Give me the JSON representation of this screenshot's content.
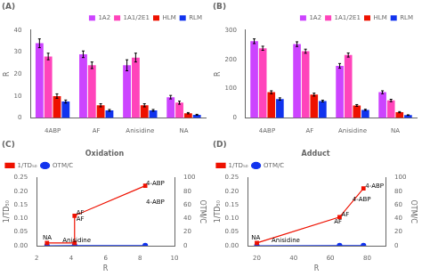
{
  "chart_data": [
    {
      "type": "bar",
      "title": "(A)",
      "ylabel": "R",
      "categories": [
        "4ABP",
        "AF",
        "Anisidine",
        "NA"
      ],
      "series": [
        {
          "name": "1A2",
          "color": "#CC44FF",
          "values": [
            34,
            29,
            24,
            9.5
          ],
          "errors": [
            2.0,
            1.5,
            2.5,
            0.8
          ]
        },
        {
          "name": "1A1/2E1",
          "color": "#FF44BB",
          "values": [
            28,
            24,
            27.5,
            7
          ],
          "errors": [
            1.5,
            1.5,
            2.0,
            0.7
          ]
        },
        {
          "name": "HLM",
          "color": "#EE1100",
          "values": [
            10,
            5.8,
            5.8,
            2.2
          ],
          "errors": [
            1.0,
            0.7,
            0.7,
            0.3
          ]
        },
        {
          "name": "RLM",
          "color": "#1133EE",
          "values": [
            7.5,
            3.5,
            3.5,
            1.5
          ],
          "errors": [
            0.7,
            0.4,
            0.4,
            0.2
          ]
        }
      ],
      "ylim": [
        0,
        40
      ],
      "yticks": [
        0,
        10,
        20,
        30,
        40
      ],
      "grid": false,
      "legend": "upper right"
    },
    {
      "type": "bar",
      "title": "(B)",
      "ylabel": "R",
      "categories": [
        "4ABP",
        "AF",
        "Anisidine",
        "NA"
      ],
      "series": [
        {
          "name": "1A2",
          "color": "#CC44FF",
          "values": [
            262,
            252,
            178,
            88
          ],
          "errors": [
            8,
            8,
            8,
            5
          ]
        },
        {
          "name": "1A1/2E1",
          "color": "#FF44BB",
          "values": [
            238,
            228,
            215,
            60
          ],
          "errors": [
            7,
            7,
            7,
            4
          ]
        },
        {
          "name": "HLM",
          "color": "#EE1100",
          "values": [
            88,
            80,
            43,
            20
          ],
          "errors": [
            5,
            5,
            3,
            2
          ]
        },
        {
          "name": "RLM",
          "color": "#1133EE",
          "values": [
            65,
            58,
            28,
            10
          ],
          "errors": [
            4,
            3,
            2,
            1
          ]
        }
      ],
      "ylim": [
        0,
        300
      ],
      "yticks": [
        0,
        100,
        200,
        300
      ],
      "grid": false,
      "legend": "upper right"
    },
    {
      "type": "line",
      "title": "(C)",
      "subtitle": "Oxidation",
      "xlabel": "R",
      "ylabel": "1/TD₅₀",
      "y2label": "OTM/C",
      "xlim": [
        2,
        10
      ],
      "xticks": [
        2,
        4,
        6,
        8,
        10
      ],
      "ylim": [
        0,
        0.25
      ],
      "yticks": [
        {
          "value": 0,
          "label": "0.00"
        },
        0.05,
        {
          "value": 0.1,
          "label": "0.10"
        },
        0.15,
        {
          "value": 0.2,
          "label": "0.20"
        },
        0.25
      ],
      "y2lim": [
        0,
        100
      ],
      "y2ticks": [
        0,
        20,
        40,
        60,
        80,
        100
      ],
      "series": [
        {
          "name": "1/TD₅₀",
          "color": "#EE1100",
          "marker": "square",
          "x": [
            2.6,
            4.2,
            4.2,
            8.3
          ],
          "values": [
            0.01,
            0.01,
            0.11,
            0.22
          ]
        },
        {
          "name": "OTM/C",
          "color": "#1133EE",
          "marker": "circle",
          "axis": "y2",
          "x": [
            2.6,
            4.2,
            8.3
          ],
          "values": [
            0.005,
            0.1,
            0.168
          ]
        }
      ],
      "annotations": [
        {
          "text": "NA",
          "x": 2.35,
          "y": 0.022
        },
        {
          "text": "AF",
          "x": 4.3,
          "y": 0.115
        },
        {
          "text": "4-ABP",
          "x": 8.35,
          "y": 0.223
        },
        {
          "text": "AF",
          "x": 4.3,
          "y": 0.093
        },
        {
          "text": "4-ABP",
          "x": 8.35,
          "y": 0.155
        },
        {
          "text": "Anisidine",
          "x": 3.5,
          "y": 0.012
        }
      ],
      "grid": false,
      "legend": "upper left"
    },
    {
      "type": "line",
      "title": "(D)",
      "subtitle": "Adduct",
      "xlabel": "R",
      "ylabel": "1/TD₅₀",
      "y2label": "OTM/C",
      "xlim": [
        15,
        90
      ],
      "xticks": [
        20,
        40,
        60,
        80
      ],
      "ylim": [
        0,
        0.25
      ],
      "yticks": [
        {
          "value": 0,
          "label": "0.00"
        },
        0.05,
        {
          "value": 0.1,
          "label": "0.10"
        },
        0.15,
        {
          "value": 0.2,
          "label": "0.20"
        },
        0.25
      ],
      "y2lim": [
        0,
        100
      ],
      "y2ticks": [
        0,
        20,
        40,
        60,
        80,
        100
      ],
      "series": [
        {
          "name": "1/TD₅₀",
          "color": "#EE1100",
          "marker": "square",
          "x": [
            20,
            65,
            78
          ],
          "values": [
            0.01,
            0.105,
            0.21
          ]
        },
        {
          "name": "OTM/C",
          "color": "#1133EE",
          "marker": "circle",
          "axis": "y2",
          "x": [
            20,
            65,
            78
          ],
          "values": [
            0.005,
            0.097,
            0.178
          ]
        }
      ],
      "annotations": [
        {
          "text": "NA",
          "x": 17,
          "y": 0.022
        },
        {
          "text": "AF",
          "x": 66,
          "y": 0.108
        },
        {
          "text": "4-ABP",
          "x": 79,
          "y": 0.213
        },
        {
          "text": "AF",
          "x": 62,
          "y": 0.082
        },
        {
          "text": "4-ABP",
          "x": 72,
          "y": 0.163
        },
        {
          "text": "Anisidine",
          "x": 28,
          "y": 0.012
        }
      ],
      "grid": false,
      "legend": "upper left"
    }
  ]
}
